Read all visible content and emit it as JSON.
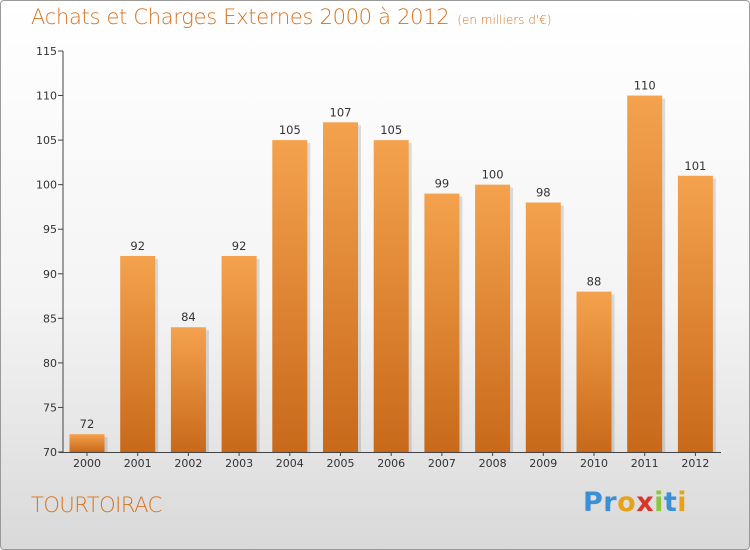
{
  "header": {
    "title": "Achats et Charges Externes 2000 à 2012",
    "unit": "(en milliers d'€)"
  },
  "footer": {
    "commune": "TOURTOIRAC"
  },
  "logo": {
    "letters": [
      "P",
      "r",
      "o",
      "x",
      "i",
      "t",
      "i"
    ],
    "colors": [
      "#3a8fd6",
      "#3a8fd6",
      "#e8a21a",
      "#d9352b",
      "#8cc63f",
      "#3a8fd6",
      "#e8a21a"
    ]
  },
  "chart_data": {
    "type": "bar",
    "title": "Achats et Charges Externes 2000 à 2012",
    "subtitle": "(en milliers d'€)",
    "categories": [
      "2000",
      "2001",
      "2002",
      "2003",
      "2004",
      "2005",
      "2006",
      "2007",
      "2008",
      "2009",
      "2010",
      "2011",
      "2012"
    ],
    "values": [
      72,
      92,
      84,
      92,
      105,
      107,
      105,
      99,
      100,
      98,
      88,
      110,
      101
    ],
    "ylim": [
      70,
      115
    ],
    "yticks": [
      70,
      75,
      80,
      85,
      90,
      95,
      100,
      105,
      110,
      115
    ],
    "grid": false,
    "colors": {
      "bar_light": "#f4a24e",
      "bar_dark": "#c8691a",
      "axis": "#444444",
      "text": "#333333",
      "accent": "#d4731f"
    }
  }
}
